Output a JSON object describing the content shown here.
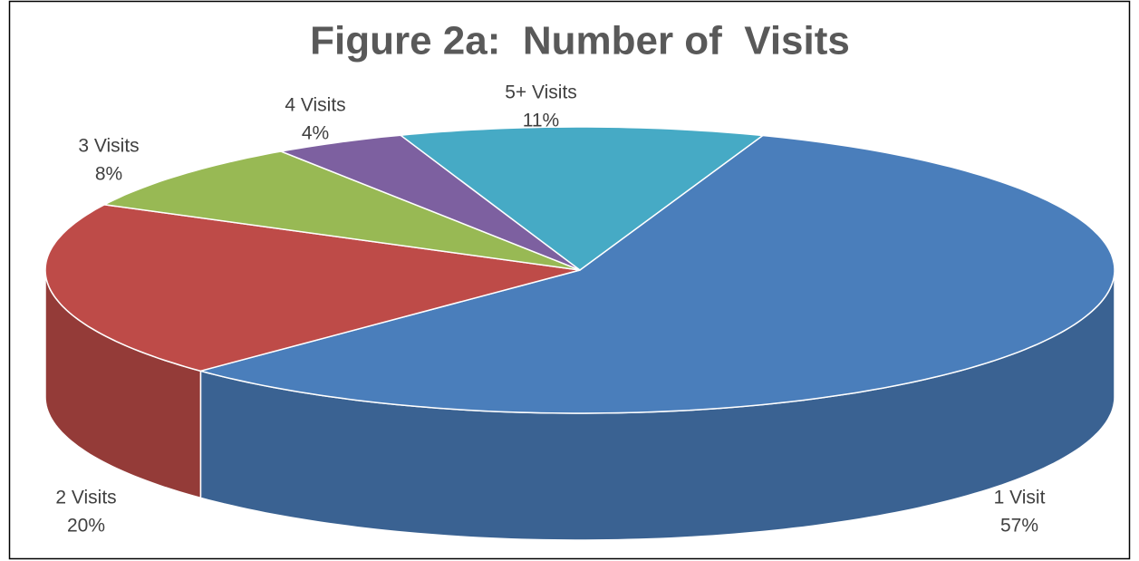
{
  "chart_data": {
    "type": "pie",
    "title": "Figure 2a:  Number of  Visits",
    "categories": [
      "1 Visit",
      "2 Visits",
      "3 Visits",
      "4 Visits",
      "5+ Visits"
    ],
    "values": [
      57,
      20,
      8,
      4,
      11
    ],
    "value_labels": [
      "57%",
      "20%",
      "8%",
      "4%",
      "11%"
    ],
    "colors": [
      "#4a7ebb",
      "#be4b48",
      "#98b954",
      "#7d60a0",
      "#46aac5"
    ]
  }
}
